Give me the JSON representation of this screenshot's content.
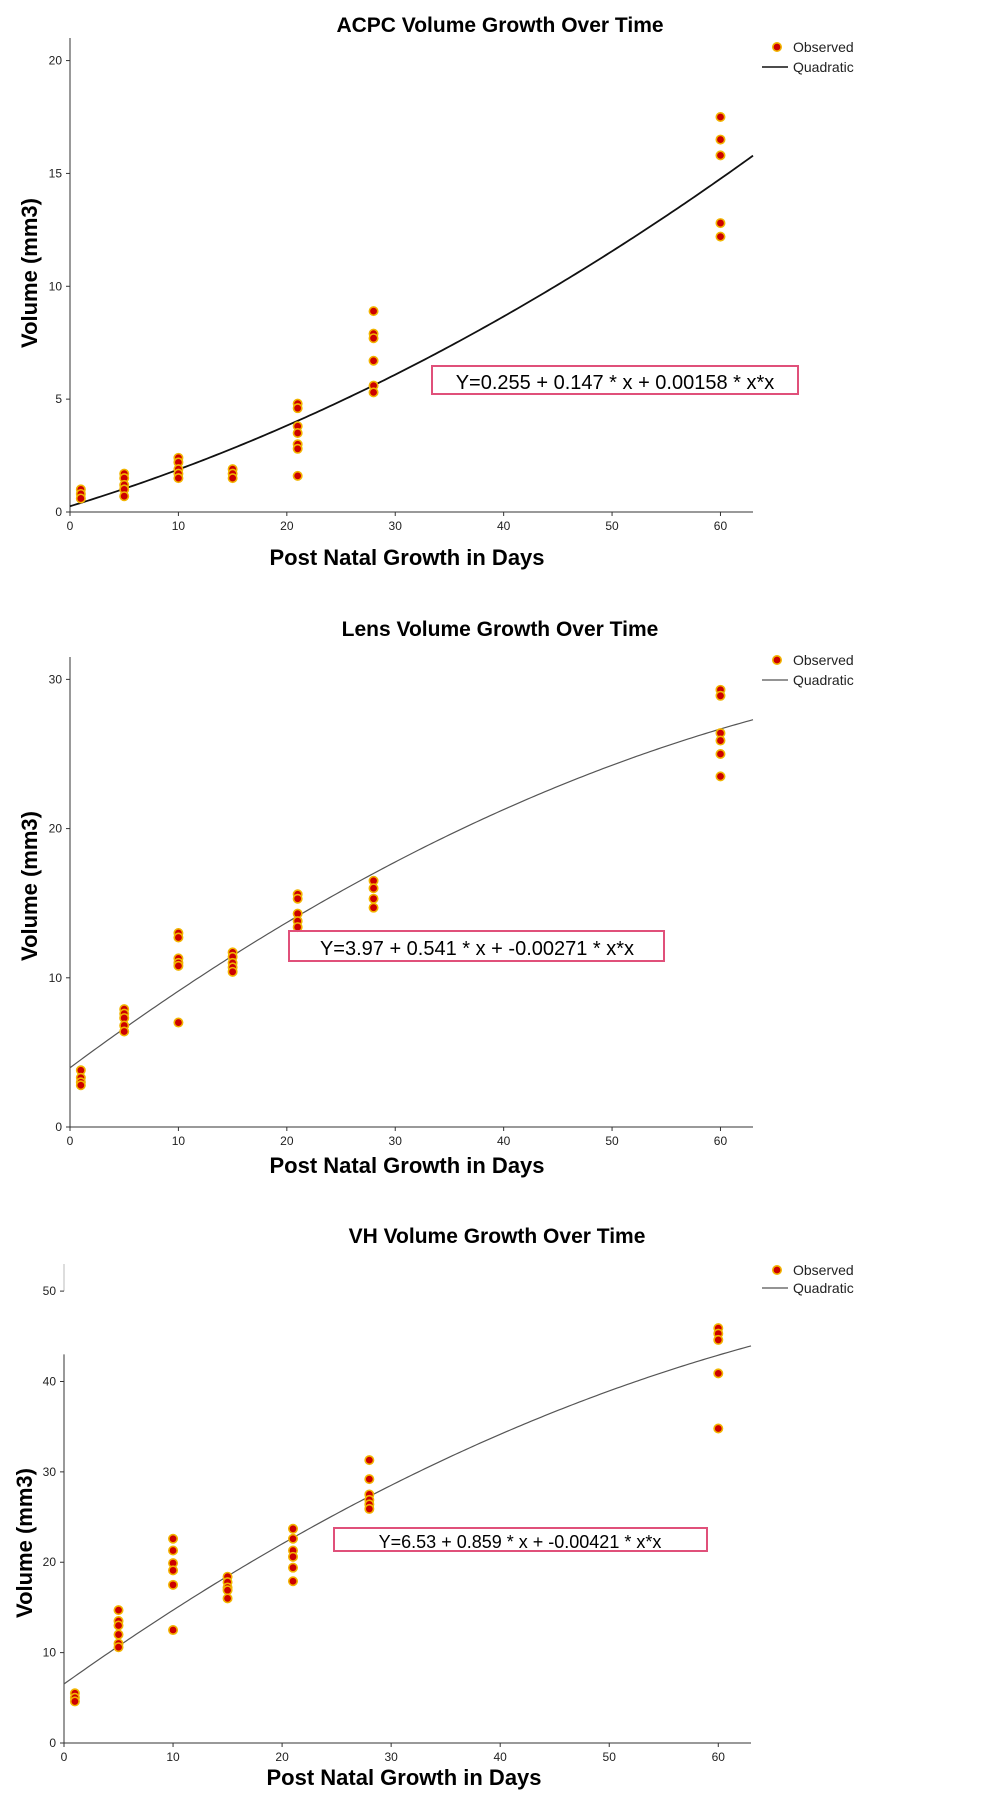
{
  "chart_data": [
    {
      "type": "scatter",
      "title": "ACPC Volume Growth Over Time",
      "xlabel": "Post Natal Growth in Days",
      "ylabel": "Volume (mm3)",
      "xlim": [
        0,
        63
      ],
      "ylim": [
        0,
        21
      ],
      "xticks": [
        0,
        10,
        20,
        30,
        40,
        50,
        60
      ],
      "yticks": [
        0,
        5,
        10,
        15,
        20
      ],
      "legend": {
        "observed": "Observed",
        "fit": "Quadratic",
        "placement": "top-right"
      },
      "equation": "Y=0.255 + 0.147 * x + 0.00158 * x*x",
      "fit": {
        "a": 0.255,
        "b": 0.147,
        "c": 0.00158,
        "color": "#111111",
        "width": 1.8
      },
      "points": [
        [
          1,
          1.0
        ],
        [
          1,
          0.8
        ],
        [
          1,
          0.6
        ],
        [
          5,
          1.7
        ],
        [
          5,
          1.5
        ],
        [
          5,
          1.2
        ],
        [
          5,
          1.0
        ],
        [
          5,
          0.7
        ],
        [
          10,
          2.4
        ],
        [
          10,
          2.2
        ],
        [
          10,
          1.9
        ],
        [
          10,
          1.7
        ],
        [
          10,
          1.5
        ],
        [
          15,
          1.9
        ],
        [
          15,
          1.7
        ],
        [
          15,
          1.5
        ],
        [
          21,
          4.8
        ],
        [
          21,
          4.6
        ],
        [
          21,
          3.8
        ],
        [
          21,
          3.5
        ],
        [
          21,
          3.0
        ],
        [
          21,
          2.8
        ],
        [
          21,
          1.6
        ],
        [
          28,
          8.9
        ],
        [
          28,
          7.9
        ],
        [
          28,
          7.7
        ],
        [
          28,
          6.7
        ],
        [
          28,
          5.6
        ],
        [
          28,
          5.3
        ],
        [
          60,
          17.5
        ],
        [
          60,
          16.5
        ],
        [
          60,
          15.8
        ],
        [
          60,
          12.8
        ],
        [
          60,
          12.2
        ]
      ]
    },
    {
      "type": "scatter",
      "title": "Lens Volume Growth Over Time",
      "xlabel": "Post Natal Growth in Days",
      "ylabel": "Volume (mm3)",
      "xlim": [
        0,
        63
      ],
      "ylim": [
        0,
        31.5
      ],
      "xticks": [
        0,
        10,
        20,
        30,
        40,
        50,
        60
      ],
      "yticks": [
        0,
        10,
        20,
        30
      ],
      "legend": {
        "observed": "Observed",
        "fit": "Quadratic",
        "placement": "top-right"
      },
      "equation": "Y=3.97 + 0.541 * x + -0.00271 * x*x",
      "fit": {
        "a": 3.97,
        "b": 0.541,
        "c": -0.00271,
        "color": "#555555",
        "width": 1.2
      },
      "points": [
        [
          1,
          3.8
        ],
        [
          1,
          3.3
        ],
        [
          1,
          3.0
        ],
        [
          1,
          2.8
        ],
        [
          5,
          7.9
        ],
        [
          5,
          7.6
        ],
        [
          5,
          7.3
        ],
        [
          5,
          6.8
        ],
        [
          5,
          6.4
        ],
        [
          10,
          13.0
        ],
        [
          10,
          12.7
        ],
        [
          10,
          11.3
        ],
        [
          10,
          11.0
        ],
        [
          10,
          10.8
        ],
        [
          10,
          7.0
        ],
        [
          15,
          11.7
        ],
        [
          15,
          11.4
        ],
        [
          15,
          11.0
        ],
        [
          15,
          10.7
        ],
        [
          15,
          10.4
        ],
        [
          21,
          15.6
        ],
        [
          21,
          15.3
        ],
        [
          21,
          14.3
        ],
        [
          21,
          13.8
        ],
        [
          21,
          13.4
        ],
        [
          28,
          16.5
        ],
        [
          28,
          16.0
        ],
        [
          28,
          15.3
        ],
        [
          28,
          14.7
        ],
        [
          60,
          29.3
        ],
        [
          60,
          28.9
        ],
        [
          60,
          26.4
        ],
        [
          60,
          25.9
        ],
        [
          60,
          25.0
        ],
        [
          60,
          23.5
        ]
      ]
    },
    {
      "type": "scatter",
      "title": "VH Volume Growth Over Time",
      "xlabel": "Post Natal Growth in Days",
      "ylabel": "Volume (mm3)",
      "xlim": [
        0,
        63
      ],
      "ylim": [
        0,
        53
      ],
      "axis_break": [
        43,
        50
      ],
      "xticks": [
        0,
        10,
        20,
        30,
        40,
        50,
        60
      ],
      "yticks": [
        0,
        10,
        20,
        30,
        40,
        50
      ],
      "legend": {
        "observed": "Observed",
        "fit": "Quadratic",
        "placement": "top-right"
      },
      "equation": "Y=6.53 + 0.859 * x + -0.00421 * x*x",
      "fit": {
        "a": 6.53,
        "b": 0.859,
        "c": -0.00421,
        "color": "#555555",
        "width": 1.2
      },
      "points": [
        [
          1,
          5.5
        ],
        [
          1,
          5.0
        ],
        [
          1,
          4.6
        ],
        [
          5,
          14.7
        ],
        [
          5,
          13.5
        ],
        [
          5,
          13.0
        ],
        [
          5,
          12.0
        ],
        [
          5,
          11.0
        ],
        [
          5,
          10.6
        ],
        [
          10,
          22.6
        ],
        [
          10,
          21.3
        ],
        [
          10,
          19.9
        ],
        [
          10,
          19.1
        ],
        [
          10,
          17.5
        ],
        [
          10,
          12.5
        ],
        [
          15,
          18.4
        ],
        [
          15,
          17.8
        ],
        [
          15,
          17.2
        ],
        [
          15,
          16.9
        ],
        [
          15,
          16.0
        ],
        [
          21,
          23.7
        ],
        [
          21,
          22.6
        ],
        [
          21,
          21.3
        ],
        [
          21,
          20.6
        ],
        [
          21,
          19.4
        ],
        [
          21,
          17.9
        ],
        [
          28,
          31.3
        ],
        [
          28,
          29.2
        ],
        [
          28,
          27.5
        ],
        [
          28,
          26.9
        ],
        [
          28,
          26.4
        ],
        [
          28,
          25.9
        ],
        [
          60,
          45.9
        ],
        [
          60,
          45.3
        ],
        [
          60,
          44.6
        ],
        [
          60,
          40.9
        ],
        [
          60,
          34.8
        ]
      ]
    }
  ]
}
